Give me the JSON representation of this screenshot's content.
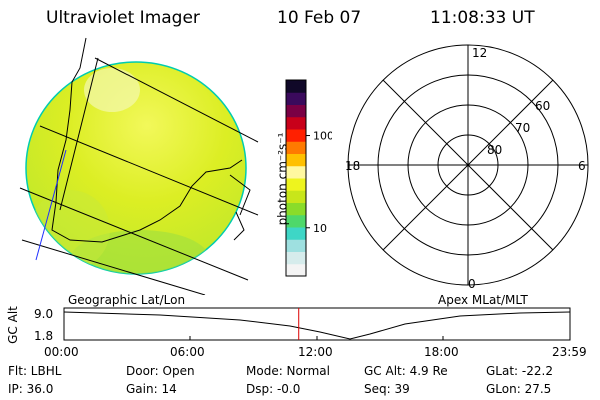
{
  "header": {
    "title": "Ultraviolet Imager",
    "date": "10 Feb 07",
    "time": "11:08:33 UT"
  },
  "colorbar": {
    "unit": "photon cm⁻²s⁻¹",
    "ticks": [
      {
        "label": "100",
        "value": 100
      },
      {
        "label": "10",
        "value": 10
      }
    ],
    "range": [
      3,
      400
    ],
    "colors": [
      "#f4f4f4",
      "#d6ecec",
      "#9ee0e0",
      "#3ed6c6",
      "#4ed86a",
      "#8adc2a",
      "#c8e61a",
      "#eef41e",
      "#fff8a0",
      "#ffc000",
      "#ff7a00",
      "#ff2000",
      "#c8001a",
      "#7a0044",
      "#3a0a5c",
      "#100828"
    ]
  },
  "left_panel": {
    "caption": "Geographic Lat/Lon",
    "fill_color": "#e2f020",
    "edge_color": "#00ccb0"
  },
  "right_panel": {
    "caption": "Apex MLat/MLT",
    "mlt_labels": [
      "12",
      "18",
      "6",
      "0"
    ],
    "lat_labels": [
      "60",
      "70",
      "80"
    ]
  },
  "altitude": {
    "axis_label": "GC Alt",
    "y_ticks": [
      "9.0",
      "1.8"
    ],
    "x_ticks": [
      "00:00",
      "06:00",
      "12:00",
      "18:00",
      "23:59"
    ],
    "current_time": "11:08",
    "marker_color": "#dd0000"
  },
  "status": {
    "flt": "Flt: LBHL",
    "ip": "IP: 36.0",
    "door": "Door: Open",
    "gain": "Gain: 14",
    "mode": "Mode: Normal",
    "dsp": "Dsp:    -0.0",
    "gc_alt": "GC Alt: 4.9 Re",
    "seq": "Seq: 39",
    "glat": "GLat:  -22.2",
    "glon": "GLon:   27.5"
  }
}
